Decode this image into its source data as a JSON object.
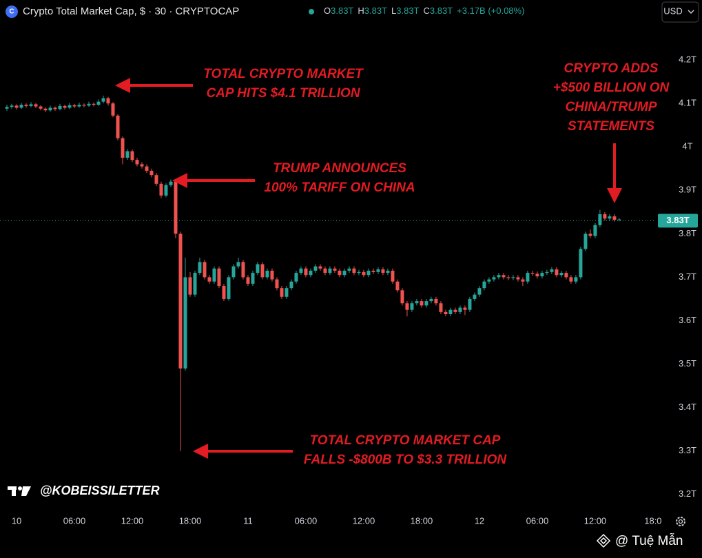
{
  "chart_data": {
    "type": "candlestick",
    "title": "Crypto Total Market Cap, $ · 30 · CRYPTOCAP",
    "ohlc_legend": [
      {
        "key": "O",
        "text": "3.83T"
      },
      {
        "key": "H",
        "text": "3.83T"
      },
      {
        "key": "L",
        "text": "3.83T"
      },
      {
        "key": "C",
        "text": "3.83T"
      }
    ],
    "change": "+3.17B (+0.08%)",
    "currency": "USD",
    "up_color": "#26a69a",
    "down_color": "#ef5350",
    "last_price": {
      "value": 3.83,
      "label": "3.83T"
    },
    "watermark": "@KOBEISSILETTER",
    "credit": "@ Tuệ Mẫn",
    "annotations": [
      {
        "lines": [
          "TOTAL CRYPTO MARKET",
          "CAP HITS $4.1 TRILLION"
        ]
      },
      {
        "lines": [
          "TRUMP ANNOUNCES",
          "100% TARIFF ON CHINA"
        ]
      },
      {
        "lines": [
          "CRYPTO ADDS",
          "+$500 BILLION ON",
          "CHINA/TRUMP",
          "STATEMENTS"
        ]
      },
      {
        "lines": [
          "TOTAL CRYPTO MARKET CAP",
          "FALLS -$800B TO $3.3 TRILLION"
        ]
      }
    ],
    "xlim": [
      -1.43,
      134.3
    ],
    "xticks": [
      {
        "value": 2,
        "label": "10"
      },
      {
        "value": 14,
        "label": "06:00"
      },
      {
        "value": 26,
        "label": "12:00"
      },
      {
        "value": 38,
        "label": "18:00"
      },
      {
        "value": 50,
        "label": "11"
      },
      {
        "value": 62,
        "label": "06:00"
      },
      {
        "value": 74,
        "label": "12:00"
      },
      {
        "value": 86,
        "label": "18:00"
      },
      {
        "value": 98,
        "label": "12"
      },
      {
        "value": 110,
        "label": "06:00"
      },
      {
        "value": 122,
        "label": "12:00"
      },
      {
        "value": 134,
        "label": "18:0"
      }
    ],
    "ylim": [
      3.16,
      4.338
    ],
    "yticks": [
      {
        "value": 3.2,
        "label": "3.2T"
      },
      {
        "value": 3.3,
        "label": "3.3T"
      },
      {
        "value": 3.4,
        "label": "3.4T"
      },
      {
        "value": 3.5,
        "label": "3.5T"
      },
      {
        "value": 3.6,
        "label": "3.6T"
      },
      {
        "value": 3.7,
        "label": "3.7T"
      },
      {
        "value": 3.8,
        "label": "3.8T"
      },
      {
        "value": 3.9,
        "label": "3.9T"
      },
      {
        "value": 4,
        "label": "4T"
      },
      {
        "value": 4.1,
        "label": "4.1T"
      },
      {
        "value": 4.2,
        "label": "4.2T"
      }
    ],
    "candles": [
      [
        4.088,
        4.097,
        4.083,
        4.092
      ],
      [
        4.092,
        4.099,
        4.088,
        4.095
      ],
      [
        4.095,
        4.098,
        4.086,
        4.09
      ],
      [
        4.09,
        4.101,
        4.087,
        4.097
      ],
      [
        4.097,
        4.1,
        4.09,
        4.094
      ],
      [
        4.094,
        4.103,
        4.091,
        4.098
      ],
      [
        4.098,
        4.101,
        4.089,
        4.093
      ],
      [
        4.093,
        4.096,
        4.084,
        4.088
      ],
      [
        4.088,
        4.091,
        4.08,
        4.084
      ],
      [
        4.084,
        4.095,
        4.081,
        4.09
      ],
      [
        4.09,
        4.093,
        4.083,
        4.087
      ],
      [
        4.087,
        4.099,
        4.084,
        4.094
      ],
      [
        4.094,
        4.097,
        4.086,
        4.09
      ],
      [
        4.09,
        4.101,
        4.087,
        4.096
      ],
      [
        4.096,
        4.099,
        4.089,
        4.093
      ],
      [
        4.093,
        4.102,
        4.09,
        4.097
      ],
      [
        4.097,
        4.1,
        4.091,
        4.095
      ],
      [
        4.095,
        4.104,
        4.092,
        4.099
      ],
      [
        4.099,
        4.102,
        4.093,
        4.097
      ],
      [
        4.097,
        4.109,
        4.094,
        4.104
      ],
      [
        4.104,
        4.118,
        4.1,
        4.112
      ],
      [
        4.112,
        4.115,
        4.095,
        4.1
      ],
      [
        4.1,
        4.103,
        4.068,
        4.072
      ],
      [
        4.072,
        4.075,
        4.015,
        4.02
      ],
      [
        4.02,
        4.024,
        3.96,
        3.975
      ],
      [
        3.975,
        3.995,
        3.97,
        3.99
      ],
      [
        3.99,
        3.994,
        3.965,
        3.97
      ],
      [
        3.97,
        3.975,
        3.955,
        3.96
      ],
      [
        3.96,
        3.965,
        3.95,
        3.955
      ],
      [
        3.955,
        3.96,
        3.94,
        3.945
      ],
      [
        3.945,
        3.95,
        3.93,
        3.935
      ],
      [
        3.935,
        3.94,
        3.91,
        3.915
      ],
      [
        3.915,
        3.92,
        3.882,
        3.888
      ],
      [
        3.888,
        3.916,
        3.884,
        3.912
      ],
      [
        3.912,
        3.925,
        3.908,
        3.92
      ],
      [
        3.92,
        3.925,
        3.79,
        3.8
      ],
      [
        3.8,
        3.805,
        3.3,
        3.49
      ],
      [
        3.49,
        3.745,
        3.485,
        3.7
      ],
      [
        3.7,
        3.712,
        3.655,
        3.66
      ],
      [
        3.66,
        3.715,
        3.655,
        3.71
      ],
      [
        3.71,
        3.745,
        3.705,
        3.735
      ],
      [
        3.735,
        3.74,
        3.695,
        3.7
      ],
      [
        3.7,
        3.705,
        3.685,
        3.69
      ],
      [
        3.69,
        3.725,
        3.685,
        3.72
      ],
      [
        3.72,
        3.725,
        3.675,
        3.68
      ],
      [
        3.68,
        3.685,
        3.645,
        3.65
      ],
      [
        3.65,
        3.705,
        3.646,
        3.7
      ],
      [
        3.7,
        3.73,
        3.695,
        3.725
      ],
      [
        3.725,
        3.745,
        3.72,
        3.735
      ],
      [
        3.735,
        3.74,
        3.695,
        3.7
      ],
      [
        3.7,
        3.705,
        3.68,
        3.685
      ],
      [
        3.685,
        3.715,
        3.68,
        3.71
      ],
      [
        3.71,
        3.735,
        3.705,
        3.73
      ],
      [
        3.73,
        3.735,
        3.695,
        3.7
      ],
      [
        3.7,
        3.72,
        3.695,
        3.715
      ],
      [
        3.715,
        3.72,
        3.69,
        3.695
      ],
      [
        3.695,
        3.7,
        3.67,
        3.675
      ],
      [
        3.675,
        3.68,
        3.65,
        3.655
      ],
      [
        3.655,
        3.68,
        3.65,
        3.675
      ],
      [
        3.675,
        3.695,
        3.67,
        3.69
      ],
      [
        3.69,
        3.715,
        3.685,
        3.71
      ],
      [
        3.71,
        3.725,
        3.705,
        3.72
      ],
      [
        3.72,
        3.725,
        3.7,
        3.705
      ],
      [
        3.705,
        3.72,
        3.7,
        3.715
      ],
      [
        3.715,
        3.73,
        3.71,
        3.725
      ],
      [
        3.725,
        3.73,
        3.715,
        3.72
      ],
      [
        3.72,
        3.725,
        3.705,
        3.71
      ],
      [
        3.71,
        3.725,
        3.705,
        3.72
      ],
      [
        3.72,
        3.725,
        3.71,
        3.715
      ],
      [
        3.715,
        3.72,
        3.7,
        3.705
      ],
      [
        3.705,
        3.72,
        3.7,
        3.715
      ],
      [
        3.715,
        3.725,
        3.71,
        3.72
      ],
      [
        3.72,
        3.725,
        3.705,
        3.71
      ],
      [
        3.71,
        3.717,
        3.705,
        3.712
      ],
      [
        3.712,
        3.717,
        3.7,
        3.705
      ],
      [
        3.705,
        3.72,
        3.7,
        3.715
      ],
      [
        3.715,
        3.72,
        3.707,
        3.712
      ],
      [
        3.712,
        3.723,
        3.707,
        3.718
      ],
      [
        3.718,
        3.723,
        3.705,
        3.71
      ],
      [
        3.71,
        3.72,
        3.705,
        3.715
      ],
      [
        3.715,
        3.72,
        3.685,
        3.69
      ],
      [
        3.69,
        3.695,
        3.665,
        3.67
      ],
      [
        3.67,
        3.675,
        3.635,
        3.64
      ],
      [
        3.64,
        3.645,
        3.61,
        3.625
      ],
      [
        3.625,
        3.645,
        3.62,
        3.64
      ],
      [
        3.64,
        3.65,
        3.635,
        3.645
      ],
      [
        3.645,
        3.65,
        3.63,
        3.635
      ],
      [
        3.635,
        3.65,
        3.63,
        3.645
      ],
      [
        3.645,
        3.655,
        3.64,
        3.65
      ],
      [
        3.65,
        3.655,
        3.635,
        3.64
      ],
      [
        3.64,
        3.645,
        3.615,
        3.62
      ],
      [
        3.62,
        3.625,
        3.61,
        3.615
      ],
      [
        3.615,
        3.63,
        3.61,
        3.625
      ],
      [
        3.625,
        3.63,
        3.615,
        3.62
      ],
      [
        3.62,
        3.635,
        3.615,
        3.63
      ],
      [
        3.63,
        3.635,
        3.613,
        3.625
      ],
      [
        3.625,
        3.655,
        3.62,
        3.65
      ],
      [
        3.65,
        3.665,
        3.645,
        3.66
      ],
      [
        3.66,
        3.68,
        3.655,
        3.675
      ],
      [
        3.675,
        3.695,
        3.67,
        3.69
      ],
      [
        3.69,
        3.7,
        3.685,
        3.695
      ],
      [
        3.695,
        3.705,
        3.69,
        3.7
      ],
      [
        3.7,
        3.71,
        3.695,
        3.705
      ],
      [
        3.705,
        3.71,
        3.695,
        3.7
      ],
      [
        3.7,
        3.705,
        3.693,
        3.698
      ],
      [
        3.698,
        3.705,
        3.693,
        3.7
      ],
      [
        3.7,
        3.705,
        3.69,
        3.695
      ],
      [
        3.695,
        3.7,
        3.68,
        3.69
      ],
      [
        3.69,
        3.715,
        3.685,
        3.71
      ],
      [
        3.71,
        3.715,
        3.703,
        3.708
      ],
      [
        3.708,
        3.713,
        3.697,
        3.702
      ],
      [
        3.702,
        3.715,
        3.697,
        3.71
      ],
      [
        3.71,
        3.717,
        3.705,
        3.712
      ],
      [
        3.712,
        3.723,
        3.707,
        3.718
      ],
      [
        3.718,
        3.723,
        3.7,
        3.705
      ],
      [
        3.705,
        3.715,
        3.7,
        3.71
      ],
      [
        3.71,
        3.715,
        3.695,
        3.7
      ],
      [
        3.7,
        3.705,
        3.685,
        3.69
      ],
      [
        3.69,
        3.705,
        3.685,
        3.7
      ],
      [
        3.7,
        3.77,
        3.695,
        3.765
      ],
      [
        3.765,
        3.805,
        3.76,
        3.8
      ],
      [
        3.8,
        3.81,
        3.79,
        3.795
      ],
      [
        3.795,
        3.825,
        3.79,
        3.82
      ],
      [
        3.82,
        3.855,
        3.815,
        3.845
      ],
      [
        3.845,
        3.85,
        3.83,
        3.835
      ],
      [
        3.835,
        3.845,
        3.83,
        3.84
      ],
      [
        3.84,
        3.845,
        3.828,
        3.832
      ],
      [
        3.832,
        3.836,
        3.829,
        3.833
      ]
    ]
  }
}
